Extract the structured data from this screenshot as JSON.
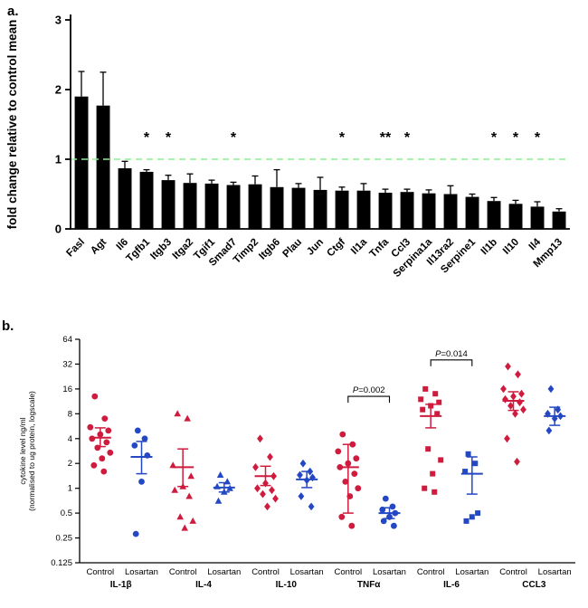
{
  "figure": {
    "panel_a_label": "a.",
    "panel_b_label": "b."
  },
  "chart_data": [
    {
      "type": "bar",
      "panel": "a",
      "title": "",
      "ylabel": "fold change relative to control mean",
      "ylim": [
        0,
        3
      ],
      "yticks": [
        0,
        1,
        2,
        3
      ],
      "grid": false,
      "reference_line": {
        "y": 1,
        "style": "dashed",
        "color": "#90ee90"
      },
      "bar_color": "#000000",
      "sig_y": 1.25,
      "categories": [
        "Fasl",
        "Agt",
        "Il6",
        "Tgfb1",
        "Itgb3",
        "Itga2",
        "Tgif1",
        "Smad7",
        "Timp2",
        "Itgb6",
        "Plau",
        "Jun",
        "Ctgf",
        "Il1a",
        "Tnfa",
        "Ccl3",
        "Serpina1a",
        "Il13ra2",
        "Serpine1",
        "Il1b",
        "Il10",
        "Il4",
        "Mmp13"
      ],
      "values": [
        1.9,
        1.77,
        0.87,
        0.82,
        0.7,
        0.66,
        0.65,
        0.63,
        0.64,
        0.6,
        0.59,
        0.56,
        0.55,
        0.55,
        0.52,
        0.53,
        0.51,
        0.5,
        0.46,
        0.4,
        0.36,
        0.32,
        0.25
      ],
      "errors": [
        0.36,
        0.48,
        0.1,
        0.03,
        0.07,
        0.13,
        0.05,
        0.04,
        0.12,
        0.25,
        0.06,
        0.18,
        0.05,
        0.1,
        0.05,
        0.04,
        0.05,
        0.12,
        0.04,
        0.05,
        0.05,
        0.07,
        0.04
      ],
      "significance": [
        {
          "index": 3,
          "label": "*"
        },
        {
          "index": 4,
          "label": "*"
        },
        {
          "index": 7,
          "label": "*"
        },
        {
          "index": 12,
          "label": "*"
        },
        {
          "index": 14,
          "label": "**"
        },
        {
          "index": 15,
          "label": "*"
        },
        {
          "index": 19,
          "label": "*"
        },
        {
          "index": 20,
          "label": "*"
        },
        {
          "index": 21,
          "label": "*"
        }
      ]
    },
    {
      "type": "scatter",
      "panel": "b",
      "ylabel_lines": [
        "cytokine level ng/ml",
        "(normalised to ug protein, logscale)"
      ],
      "yscale": "log2",
      "ylim": [
        0.125,
        64
      ],
      "yticks": [
        0.125,
        0.25,
        0.5,
        1,
        2,
        4,
        8,
        16,
        32,
        64
      ],
      "grid": false,
      "cytokines": [
        "IL-1β",
        "IL-4",
        "IL-10",
        "TNFα",
        "IL-6",
        "CCL3"
      ],
      "colors": {
        "control": "#cf1b3e",
        "losartan": "#2447c4"
      },
      "groups": [
        {
          "cytokine": "IL-1β",
          "treatment": "Control",
          "color": "#cf1b3e",
          "marker": "circle",
          "values": [
            13,
            7,
            5.5,
            5,
            4.5,
            4,
            3.6,
            3.1,
            2.7,
            2.3,
            1.9,
            1.6
          ],
          "mean": 4.1,
          "sem_lo": 3.2,
          "sem_hi": 5.4
        },
        {
          "cytokine": "IL-1β",
          "treatment": "Losartan",
          "color": "#2447c4",
          "marker": "circle",
          "values": [
            5,
            4,
            3.3,
            2.5,
            1.2,
            0.28
          ],
          "mean": 2.4,
          "sem_lo": 1.5,
          "sem_hi": 3.7
        },
        {
          "cytokine": "IL-4",
          "treatment": "Control",
          "color": "#cf1b3e",
          "marker": "triangle",
          "values": [
            8,
            7,
            1.9,
            1.4,
            1.05,
            0.95,
            0.8,
            0.45,
            0.4,
            0.33
          ],
          "mean": 1.8,
          "sem_lo": 1.05,
          "sem_hi": 3.0
        },
        {
          "cytokine": "IL-4",
          "treatment": "Losartan",
          "color": "#2447c4",
          "marker": "triangle",
          "values": [
            1.45,
            1.2,
            1.05,
            1.0,
            0.9,
            0.7
          ],
          "mean": 1.02,
          "sem_lo": 0.9,
          "sem_hi": 1.17
        },
        {
          "cytokine": "IL-10",
          "treatment": "Control",
          "color": "#cf1b3e",
          "marker": "diamond",
          "values": [
            4,
            2.4,
            1.8,
            1.4,
            1.15,
            1.0,
            0.95,
            0.85,
            0.75,
            0.6
          ],
          "mean": 1.4,
          "sem_lo": 1.08,
          "sem_hi": 1.85
        },
        {
          "cytokine": "IL-10",
          "treatment": "Losartan",
          "color": "#2447c4",
          "marker": "diamond",
          "values": [
            2.0,
            1.6,
            1.45,
            1.35,
            1.25,
            0.8,
            0.6
          ],
          "mean": 1.28,
          "sem_lo": 1.02,
          "sem_hi": 1.6
        },
        {
          "cytokine": "TNFα",
          "treatment": "Control",
          "color": "#cf1b3e",
          "marker": "circle",
          "values": [
            4.5,
            3.4,
            2.8,
            2.3,
            2.0,
            1.8,
            1.5,
            1.2,
            1.0,
            0.8,
            0.45,
            0.35
          ],
          "mean": 1.8,
          "sem_lo": 0.5,
          "sem_hi": 3.4
        },
        {
          "cytokine": "TNFα",
          "treatment": "Losartan",
          "color": "#2447c4",
          "marker": "circle",
          "values": [
            0.75,
            0.6,
            0.55,
            0.5,
            0.45,
            0.4,
            0.35
          ],
          "mean": 0.5,
          "sem_lo": 0.43,
          "sem_hi": 0.58
        },
        {
          "cytokine": "IL-6",
          "treatment": "Control",
          "color": "#cf1b3e",
          "marker": "square",
          "values": [
            16,
            14,
            12,
            11,
            10,
            9,
            8,
            3,
            2.2,
            1.5,
            1.0,
            0.9
          ],
          "mean": 7.5,
          "sem_lo": 5.4,
          "sem_hi": 10.4
        },
        {
          "cytokine": "IL-6",
          "treatment": "Losartan",
          "color": "#2447c4",
          "marker": "square",
          "values": [
            2.6,
            2.0,
            1.6,
            0.5,
            0.45,
            0.4
          ],
          "mean": 1.5,
          "sem_lo": 0.85,
          "sem_hi": 2.4
        },
        {
          "cytokine": "CCL3",
          "treatment": "Control",
          "color": "#cf1b3e",
          "marker": "diamond",
          "values": [
            30,
            24,
            16,
            14,
            13,
            12,
            11,
            10,
            9,
            8,
            4,
            2.1
          ],
          "mean": 11.5,
          "sem_lo": 8.8,
          "sem_hi": 14.8
        },
        {
          "cytokine": "CCL3",
          "treatment": "Losartan",
          "color": "#2447c4",
          "marker": "diamond",
          "values": [
            16,
            9,
            8,
            7.5,
            7,
            5
          ],
          "mean": 7.5,
          "sem_lo": 5.8,
          "sem_hi": 9.6
        }
      ],
      "comparisons": [
        {
          "pair": [
            6,
            7
          ],
          "label": "P=0.002",
          "bracket_y": 13
        },
        {
          "pair": [
            8,
            9
          ],
          "label": "P=0.014",
          "bracket_y": 36
        }
      ]
    }
  ]
}
